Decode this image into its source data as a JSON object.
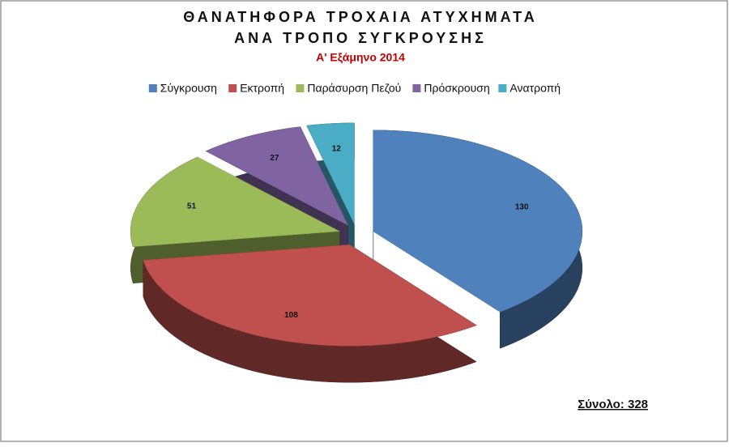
{
  "chart_data": {
    "type": "pie",
    "title": [
      "ΘΑΝΑΤΗΦΟΡΑ ΤΡΟΧΑΙΑ ΑΤΥΧΗΜΑΤΑ",
      "ΑΝΑ ΤΡΟΠΟ ΣΥΓΚΡΟΥΣΗΣ"
    ],
    "subtitle": "Α' Εξάμηνο 2014",
    "categories": [
      "Σύγκρουση",
      "Εκτροπή",
      "Παράσυρση Πεζού",
      "Πρόσκρουση",
      "Ανατροπή"
    ],
    "values": [
      130,
      108,
      51,
      27,
      12
    ],
    "colors": [
      "#4f81bd",
      "#c0504d",
      "#9bbb59",
      "#8064a2",
      "#4bacc6"
    ],
    "legend": "top",
    "annotation": "Σύνολο:  328"
  }
}
